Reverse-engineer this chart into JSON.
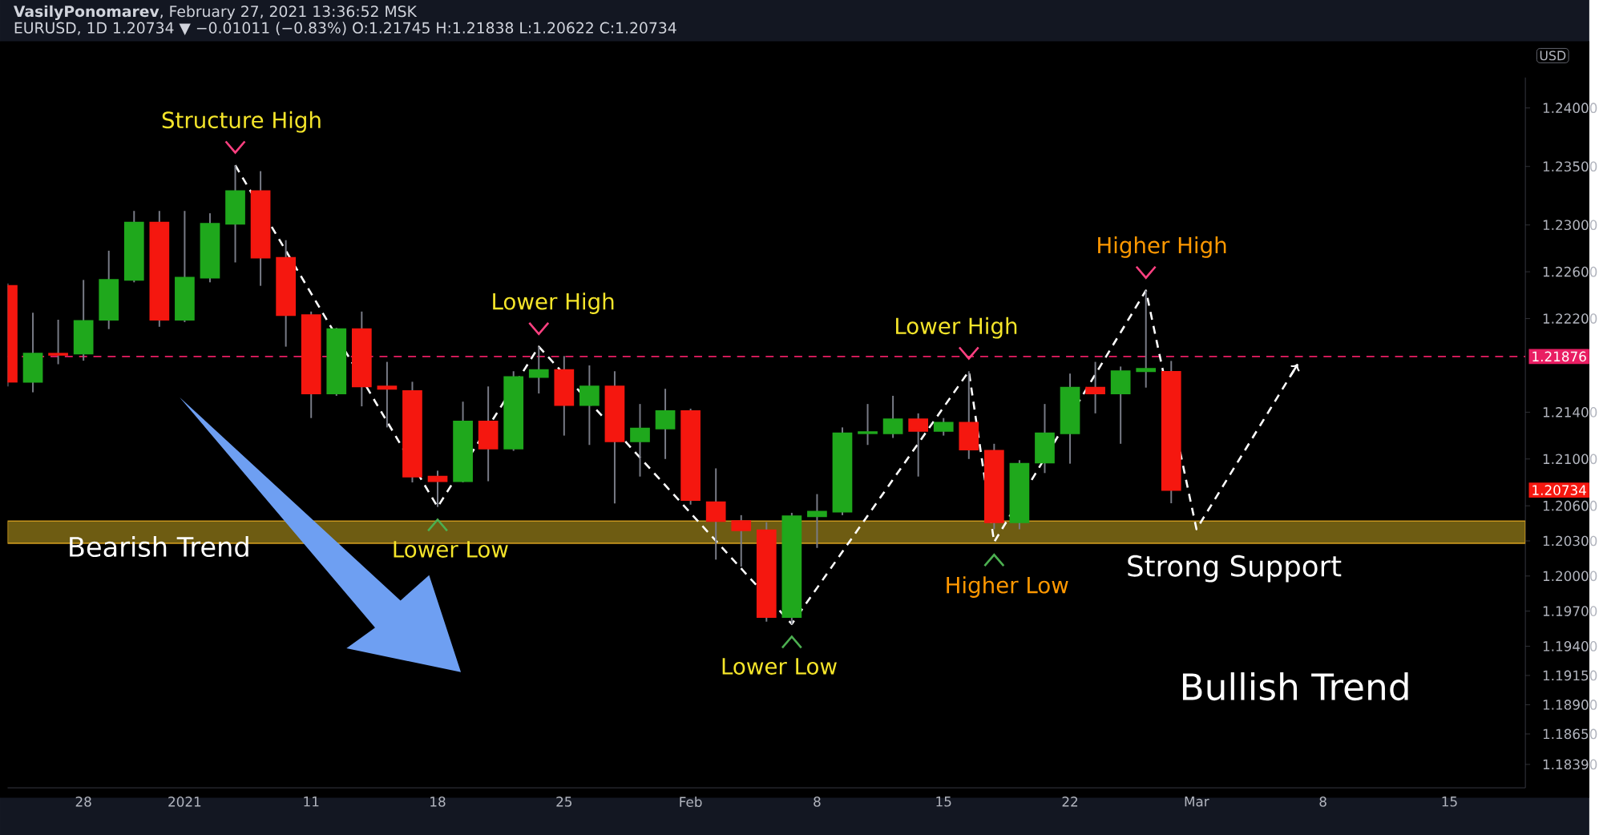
{
  "chart_data": {
    "type": "candlestick",
    "title": "**VasilyPonomarev**, February 27, 2021 13:36:52 MSK",
    "subtitle": "EURUSD, 1D 1.20734 ▼ −0.01011 (−0.83%) O:1.21745 H:1.21838 L:1.20622 C:1.20734",
    "ylabel": "USD",
    "categories": [
      null,
      null,
      null,
      "28",
      null,
      null,
      null,
      "2021",
      null,
      null,
      null,
      null,
      "11",
      null,
      null,
      null,
      null,
      "18",
      null,
      null,
      null,
      null,
      "25",
      null,
      null,
      null,
      null,
      "Feb",
      null,
      null,
      null,
      null,
      "8",
      null,
      null,
      null,
      null,
      "15",
      null,
      null,
      null,
      null,
      "22",
      null,
      null,
      null,
      null,
      "Mar",
      null,
      null,
      null,
      null,
      "8",
      null,
      null,
      null,
      null,
      "15",
      null,
      null,
      null
    ],
    "ohlc": [
      [
        1.2248,
        1.225,
        1.2162,
        1.2166
      ],
      [
        1.2166,
        1.2225,
        1.2157,
        1.219
      ],
      [
        1.219,
        1.2219,
        1.2181,
        1.2189
      ],
      [
        1.219,
        1.2253,
        1.2184,
        1.2218
      ],
      [
        1.2219,
        1.2278,
        1.2211,
        1.2253
      ],
      [
        1.2253,
        1.2312,
        1.2251,
        1.2302
      ],
      [
        1.2302,
        1.2312,
        1.2213,
        1.2219
      ],
      [
        1.2219,
        1.2312,
        1.2217,
        1.2255
      ],
      [
        1.2255,
        1.231,
        1.2251,
        1.2301
      ],
      [
        1.2301,
        1.2351,
        1.2268,
        1.2329
      ],
      [
        1.2329,
        1.2346,
        1.2248,
        1.2272
      ],
      [
        1.2272,
        1.2287,
        1.2196,
        1.2223
      ],
      [
        1.2223,
        1.2226,
        1.2135,
        1.2156
      ],
      [
        1.2156,
        1.2212,
        1.2154,
        1.2211
      ],
      [
        1.2211,
        1.2226,
        1.2145,
        1.2162
      ],
      [
        1.2162,
        1.2183,
        1.2127,
        1.216
      ],
      [
        1.2158,
        1.2166,
        1.208,
        1.2085
      ],
      [
        1.2085,
        1.209,
        1.2059,
        1.2081
      ],
      [
        1.2081,
        1.2149,
        1.208,
        1.2132
      ],
      [
        1.2132,
        1.2162,
        1.2081,
        1.2109
      ],
      [
        1.2109,
        1.2175,
        1.2107,
        1.217
      ],
      [
        1.217,
        1.2196,
        1.2156,
        1.2176
      ],
      [
        1.2176,
        1.2188,
        1.212,
        1.2146
      ],
      [
        1.2146,
        1.218,
        1.2112,
        1.2162
      ],
      [
        1.2162,
        1.2175,
        1.2062,
        1.2115
      ],
      [
        1.2115,
        1.2147,
        1.2085,
        1.2126
      ],
      [
        1.2126,
        1.216,
        1.21,
        1.2141
      ],
      [
        1.2141,
        1.2143,
        1.2061,
        1.2065
      ],
      [
        1.2063,
        1.2092,
        1.2014,
        1.2047
      ],
      [
        1.2047,
        1.2052,
        1.2008,
        1.2039
      ],
      [
        1.2039,
        1.2046,
        1.1961,
        1.1965
      ],
      [
        1.1965,
        1.2054,
        1.1959,
        1.2051
      ],
      [
        1.2051,
        1.207,
        1.2024,
        1.2055
      ],
      [
        1.2055,
        1.2127,
        1.2052,
        1.2122
      ],
      [
        1.2122,
        1.2147,
        1.2112,
        1.2123
      ],
      [
        1.2122,
        1.2154,
        1.2118,
        1.2134
      ],
      [
        1.2134,
        1.2139,
        1.2085,
        1.2124
      ],
      [
        1.2124,
        1.2135,
        1.212,
        1.2131
      ],
      [
        1.2131,
        1.2175,
        1.21,
        1.2108
      ],
      [
        1.2107,
        1.2113,
        1.204,
        1.2046
      ],
      [
        1.2046,
        1.2099,
        1.204,
        1.2096
      ],
      [
        1.2097,
        1.2147,
        1.2088,
        1.2122
      ],
      [
        1.2122,
        1.2173,
        1.2096,
        1.2161
      ],
      [
        1.2161,
        1.2183,
        1.2139,
        1.2156
      ],
      [
        1.2156,
        1.2179,
        1.2113,
        1.2175
      ],
      [
        1.2175,
        1.2244,
        1.2161,
        1.2177
      ],
      [
        1.21745,
        1.21838,
        1.20622,
        1.20734
      ],
      null,
      null,
      null,
      null,
      null,
      null,
      null,
      null,
      null,
      null,
      null,
      null,
      null,
      null
    ],
    "colors": [
      "#f5170f",
      "#1fa81c",
      "#f5170f",
      "#1fa81c",
      "#1fa81c",
      "#1fa81c",
      "#f5170f",
      "#1fa81c",
      "#1fa81c",
      "#1fa81c",
      "#f5170f",
      "#f5170f",
      "#f5170f",
      "#1fa81c",
      "#f5170f",
      "#f5170f",
      "#f5170f",
      "#f5170f",
      "#1fa81c",
      "#f5170f",
      "#1fa81c",
      "#1fa81c",
      "#f5170f",
      "#1fa81c",
      "#f5170f",
      "#1fa81c",
      "#1fa81c",
      "#f5170f",
      "#f5170f",
      "#f5170f",
      "#f5170f",
      "#1fa81c",
      "#1fa81c",
      "#1fa81c",
      "#1fa81c",
      "#1fa81c",
      "#f5170f",
      "#1fa81c",
      "#f5170f",
      "#f5170f",
      "#1fa81c",
      "#1fa81c",
      "#1fa81c",
      "#f5170f",
      "#1fa81c",
      "#1fa81c",
      "#f5170f",
      null,
      null,
      null,
      null,
      null,
      null,
      null,
      null,
      null,
      null,
      null,
      null,
      null,
      null
    ],
    "series": [
      {
        "type": "line",
        "color": "#ffffff",
        "line_style": "dashed",
        "values": [
          null,
          null,
          null,
          null,
          null,
          null,
          null,
          null,
          null,
          1.2351,
          null,
          null,
          null,
          null,
          null,
          null,
          null,
          1.2059,
          null,
          null,
          null,
          1.2196,
          null,
          null,
          null,
          null,
          null,
          null,
          null,
          null,
          null,
          1.1959,
          null,
          null,
          null,
          null,
          null,
          null,
          1.2175,
          1.2029,
          null,
          null,
          null,
          null,
          null,
          1.2244,
          null,
          1.204,
          null,
          null,
          null,
          1.2181,
          null,
          null,
          null,
          null,
          null,
          null,
          null,
          null,
          null
        ]
      }
    ],
    "ylim": [
      1.1819,
      1.2426
    ],
    "yticks": [
      {
        "value": 1.24,
        "label": "1.24000"
      },
      {
        "value": 1.235,
        "label": "1.23500"
      },
      {
        "value": 1.23,
        "label": "1.23000"
      },
      {
        "value": 1.226,
        "label": "1.22600"
      },
      {
        "value": 1.222,
        "label": "1.22200"
      },
      {
        "value": 1.214,
        "label": "1.21400"
      },
      {
        "value": 1.21,
        "label": "1.21000"
      },
      {
        "value": 1.206,
        "label": "1.20600"
      },
      {
        "value": 1.203,
        "label": "1.20300"
      },
      {
        "value": 1.2,
        "label": "1.20000"
      },
      {
        "value": 1.197,
        "label": "1.19700"
      },
      {
        "value": 1.194,
        "label": "1.19400"
      },
      {
        "value": 1.1915,
        "label": "1.19150"
      },
      {
        "value": 1.189,
        "label": "1.18900"
      },
      {
        "value": 1.1865,
        "label": "1.18650"
      },
      {
        "value": 1.1839,
        "label": "1.18390"
      }
    ],
    "ref_lines": [
      {
        "axis": "y",
        "value": 1.21876,
        "label": "1.21876",
        "color": "#e91e63",
        "line_style": "dashed"
      }
    ],
    "bands": [
      {
        "axis": "y",
        "from": 1.2028,
        "to": 1.2047,
        "label": "Strong Support",
        "color": "#6e5c12"
      }
    ],
    "annotations": [
      "Structure High",
      "Lower Low",
      "Lower High",
      "Lower Low",
      "Lower High",
      "Higher Low",
      "Higher High",
      "1.20734",
      "Bearish Trend",
      "Bullish Trend"
    ]
  }
}
